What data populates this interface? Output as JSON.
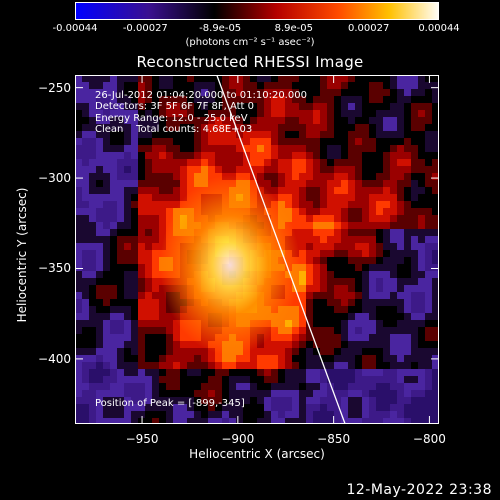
{
  "colorbar": {
    "ticks": [
      "-0.00044",
      "-0.00027",
      "-8.9e-05",
      "8.9e-05",
      "0.00027",
      "0.00044"
    ],
    "tick_values": [
      -0.00044,
      -0.00027,
      -8.9e-05,
      8.9e-05,
      0.00027,
      0.00044
    ],
    "units": "(photons cm⁻² s⁻¹ asec⁻²)"
  },
  "info": {
    "line1": "26-Jul-2012 01:04:20.000 to 01:10:20.000",
    "line2": "Detectors: 3F 5F 6F 7F 8F, Att 0",
    "line3": "Energy Range: 12.0 - 25.0 keV",
    "line4": "Clean    Total counts: 4.68E+03"
  },
  "peak": "Position of Peak = [-899,-345]",
  "timestamp": "12-May-2022 23:38",
  "chart_data": {
    "type": "heatmap",
    "title": "Reconstructed RHESSI Image",
    "xlabel": "Heliocentric X (arcsec)",
    "ylabel": "Heliocentric Y (arcsec)",
    "xlim": [
      -985,
      -795
    ],
    "ylim": [
      -436,
      -243
    ],
    "x_ticks": [
      -950,
      -900,
      -850,
      -800
    ],
    "y_ticks": [
      -250,
      -300,
      -350,
      -400
    ],
    "peak_position": [
      -899,
      -345
    ],
    "limb_line": [
      [
        -911,
        -243
      ],
      [
        -844,
        -436
      ]
    ],
    "colormap": "blue-purple-black-red-orange-yellow-white",
    "value_range": [
      -0.00044,
      0.00044
    ]
  }
}
